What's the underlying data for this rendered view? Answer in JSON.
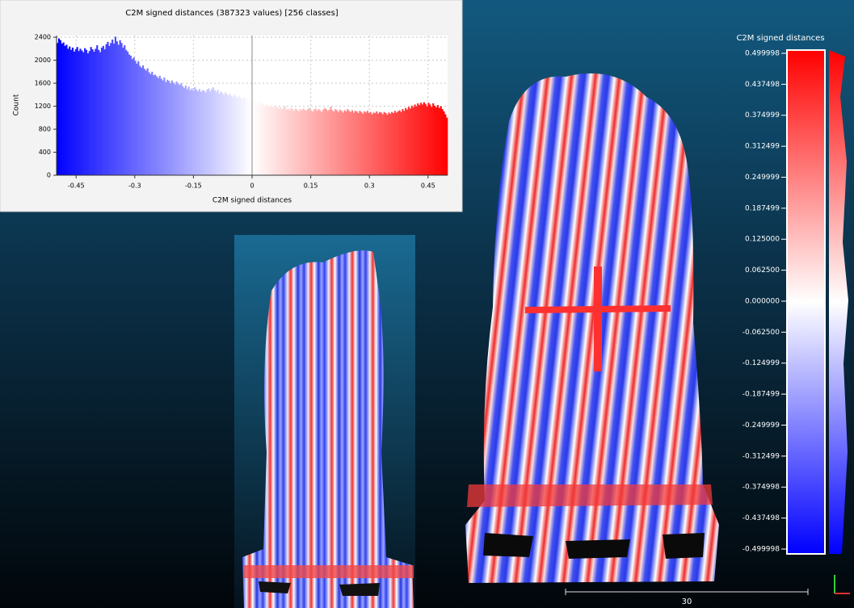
{
  "histogram": {
    "type": "histogram",
    "title": "C2M signed distances (387323 values)  [256 classes]",
    "x_label": "C2M signed distances",
    "y_label": "Count",
    "xlim": [
      -0.5,
      0.5
    ],
    "ylim": [
      0,
      2430
    ],
    "xticks": [
      -0.45,
      -0.3,
      -0.15,
      0,
      0.15,
      0.3,
      0.45
    ],
    "yticks": [
      0,
      400,
      800,
      1200,
      1600,
      2000,
      2400
    ],
    "grid": true,
    "colormap": [
      "#0000ff",
      "#ffffff",
      "#ff0000"
    ],
    "bins": [
      -0.5,
      -0.4961,
      -0.4922,
      -0.4883,
      -0.4844,
      -0.4805,
      -0.4766,
      -0.4727,
      -0.4687,
      -0.4648,
      -0.4609,
      -0.457,
      -0.4531,
      -0.4492,
      -0.4453,
      -0.4414,
      -0.4375,
      -0.4336,
      -0.4297,
      -0.4258,
      -0.4219,
      -0.418,
      -0.4141,
      -0.4102,
      -0.4062,
      -0.4023,
      -0.3984,
      -0.3945,
      -0.3906,
      -0.3867,
      -0.3828,
      -0.3789,
      -0.375,
      -0.3711,
      -0.3672,
      -0.3633,
      -0.3594,
      -0.3555,
      -0.3516,
      -0.3477,
      -0.3437,
      -0.3398,
      -0.3359,
      -0.332,
      -0.3281,
      -0.3242,
      -0.3203,
      -0.3164,
      -0.3125,
      -0.3086,
      -0.3047,
      -0.3008,
      -0.2969,
      -0.293,
      -0.2891,
      -0.2852,
      -0.2812,
      -0.2773,
      -0.2734,
      -0.2695,
      -0.2656,
      -0.2617,
      -0.2578,
      -0.2539,
      -0.25,
      -0.2461,
      -0.2422,
      -0.2383,
      -0.2344,
      -0.2305,
      -0.2266,
      -0.2227,
      -0.2187,
      -0.2148,
      -0.2109,
      -0.207,
      -0.2031,
      -0.1992,
      -0.1953,
      -0.1914,
      -0.1875,
      -0.1836,
      -0.1797,
      -0.1758,
      -0.1719,
      -0.168,
      -0.1641,
      -0.1602,
      -0.1562,
      -0.1523,
      -0.1484,
      -0.1445,
      -0.1406,
      -0.1367,
      -0.1328,
      -0.1289,
      -0.125,
      -0.1211,
      -0.1172,
      -0.1133,
      -0.1094,
      -0.1055,
      -0.1016,
      -0.0977,
      -0.0937,
      -0.0898,
      -0.0859,
      -0.082,
      -0.0781,
      -0.0742,
      -0.0703,
      -0.0664,
      -0.0625,
      -0.0586,
      -0.0547,
      -0.0508,
      -0.0469,
      -0.043,
      -0.0391,
      -0.0352,
      -0.0312,
      -0.0273,
      -0.0234,
      -0.0195,
      -0.0156,
      -0.0117,
      -0.0078,
      -0.0039,
      0,
      0.0039,
      0.0078,
      0.0117,
      0.0156,
      0.0195,
      0.0234,
      0.0273,
      0.0313,
      0.0352,
      0.0391,
      0.043,
      0.0469,
      0.0508,
      0.0547,
      0.0586,
      0.0625,
      0.0664,
      0.0703,
      0.0742,
      0.0781,
      0.082,
      0.0859,
      0.0898,
      0.0938,
      0.0977,
      0.1016,
      0.1055,
      0.1094,
      0.1133,
      0.1172,
      0.1211,
      0.125,
      0.1289,
      0.1328,
      0.1367,
      0.1406,
      0.1445,
      0.1484,
      0.1523,
      0.1563,
      0.1602,
      0.1641,
      0.168,
      0.1719,
      0.1758,
      0.1797,
      0.1836,
      0.1875,
      0.1914,
      0.1953,
      0.1992,
      0.2031,
      0.207,
      0.2109,
      0.2148,
      0.2188,
      0.2227,
      0.2266,
      0.2305,
      0.2344,
      0.2383,
      0.2422,
      0.2461,
      0.25,
      0.2539,
      0.2578,
      0.2617,
      0.2656,
      0.2695,
      0.2734,
      0.2773,
      0.2813,
      0.2852,
      0.2891,
      0.293,
      0.2969,
      0.3008,
      0.3047,
      0.3086,
      0.3125,
      0.3164,
      0.3203,
      0.3242,
      0.3281,
      0.332,
      0.3359,
      0.3398,
      0.3438,
      0.3477,
      0.3516,
      0.3555,
      0.3594,
      0.3633,
      0.3672,
      0.3711,
      0.375,
      0.3789,
      0.3828,
      0.3867,
      0.3906,
      0.3945,
      0.3984,
      0.4023,
      0.4063,
      0.4102,
      0.4141,
      0.418,
      0.4219,
      0.4258,
      0.4297,
      0.4336,
      0.4375,
      0.4414,
      0.4453,
      0.4492,
      0.4531,
      0.457,
      0.4609,
      0.4648,
      0.4688,
      0.4727,
      0.4766,
      0.4805,
      0.4844,
      0.4883,
      0.4922,
      0.4961,
      0.5
    ],
    "values": [
      2300,
      2380,
      2350,
      2290,
      2310,
      2250,
      2270,
      2200,
      2240,
      2180,
      2220,
      2150,
      2190,
      2230,
      2160,
      2200,
      2170,
      2140,
      2210,
      2180,
      2120,
      2160,
      2230,
      2190,
      2150,
      2200,
      2260,
      2180,
      2140,
      2220,
      2250,
      2190,
      2280,
      2320,
      2250,
      2300,
      2360,
      2290,
      2410,
      2330,
      2270,
      2350,
      2300,
      2220,
      2260,
      2180,
      2150,
      2100,
      2080,
      2020,
      2050,
      1990,
      1940,
      1980,
      1900,
      1870,
      1910,
      1850,
      1820,
      1860,
      1790,
      1760,
      1800,
      1740,
      1750,
      1720,
      1690,
      1730,
      1680,
      1650,
      1700,
      1620,
      1660,
      1640,
      1600,
      1650,
      1610,
      1580,
      1630,
      1590,
      1570,
      1600,
      1550,
      1520,
      1560,
      1500,
      1540,
      1480,
      1510,
      1470,
      1530,
      1490,
      1460,
      1500,
      1450,
      1480,
      1470,
      1440,
      1490,
      1510,
      1460,
      1500,
      1530,
      1480,
      1450,
      1490,
      1420,
      1460,
      1430,
      1400,
      1440,
      1410,
      1390,
      1420,
      1380,
      1360,
      1400,
      1370,
      1340,
      1380,
      1350,
      1320,
      1360,
      1330,
      1300,
      1340,
      1310,
      1290,
      1280,
      1300,
      1260,
      1250,
      1230,
      1270,
      1220,
      1240,
      1200,
      1230,
      1210,
      1190,
      1220,
      1180,
      1200,
      1170,
      1190,
      1160,
      1180,
      1150,
      1170,
      1200,
      1140,
      1160,
      1130,
      1170,
      1150,
      1120,
      1160,
      1140,
      1110,
      1150,
      1130,
      1160,
      1140,
      1120,
      1150,
      1170,
      1130,
      1110,
      1140,
      1160,
      1120,
      1150,
      1130,
      1100,
      1140,
      1170,
      1150,
      1120,
      1140,
      1190,
      1130,
      1110,
      1150,
      1130,
      1100,
      1140,
      1120,
      1090,
      1130,
      1110,
      1150,
      1120,
      1100,
      1130,
      1090,
      1120,
      1110,
      1080,
      1120,
      1100,
      1070,
      1110,
      1090,
      1120,
      1080,
      1100,
      1060,
      1090,
      1080,
      1110,
      1070,
      1100,
      1090,
      1060,
      1100,
      1080,
      1050,
      1090,
      1070,
      1100,
      1080,
      1120,
      1090,
      1110,
      1130,
      1100,
      1150,
      1120,
      1170,
      1140,
      1190,
      1160,
      1210,
      1180,
      1230,
      1200,
      1250,
      1220,
      1260,
      1230,
      1270,
      1240,
      1200,
      1260,
      1230,
      1190,
      1250,
      1210,
      1180,
      1220,
      1170,
      1200,
      1150,
      1110,
      1060,
      1000
    ]
  },
  "color_scale": {
    "title": "C2M signed distances",
    "lim": [
      0.499998,
      -0.499998
    ],
    "ticks": [
      0.499998,
      0.437498,
      0.374999,
      0.312499,
      0.249999,
      0.187499,
      {
        "value": 0.125,
        "label": "0.125000"
      },
      {
        "value": 0.0625,
        "label": "0.062500"
      },
      {
        "value": 0,
        "label": "0.000000"
      },
      {
        "value": -0.0625,
        "label": "-0.062500"
      },
      -0.124999,
      -0.187499,
      -0.249999,
      -0.312499,
      -0.374998,
      -0.437498,
      -0.499998
    ]
  },
  "scale_bar": {
    "label": 30
  }
}
